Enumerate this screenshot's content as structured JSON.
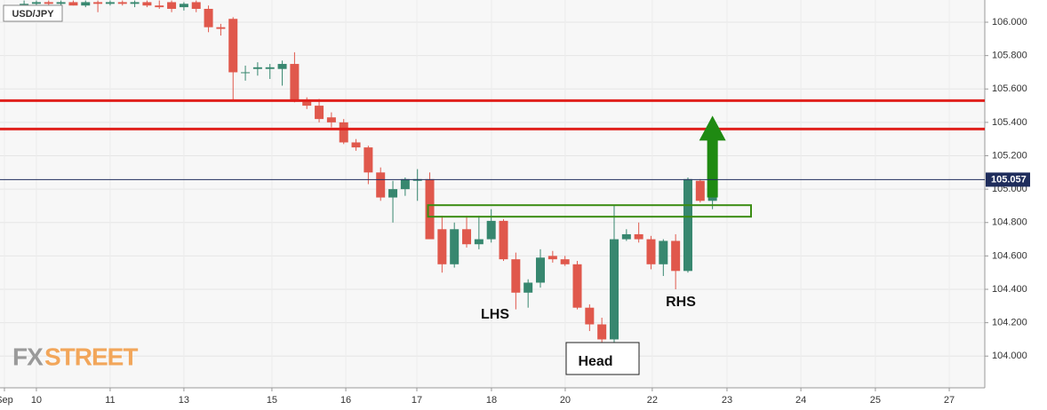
{
  "chart_data": {
    "type": "candlestick",
    "title": "USD/JPY",
    "logo": [
      "FX",
      "STREET"
    ],
    "up_color": "#37876f",
    "down_color": "#e0584c",
    "grid": true,
    "x": [
      -1,
      0,
      1,
      2,
      3,
      4,
      5,
      6,
      7,
      8,
      9,
      10,
      11,
      12,
      13,
      14,
      15,
      16,
      17,
      18,
      19,
      20,
      21,
      22,
      23,
      24,
      25,
      26,
      27,
      28,
      29,
      30,
      31,
      32,
      33,
      34,
      35,
      36,
      37,
      38,
      39,
      40,
      41,
      42,
      43,
      44,
      45,
      46,
      47,
      48,
      49,
      50,
      51,
      52,
      53,
      54,
      55
    ],
    "open": [
      106.1,
      106.11,
      106.12,
      106.11,
      106.12,
      106.1,
      106.12,
      106.11,
      106.12,
      106.11,
      106.12,
      106.1,
      106.12,
      106.09,
      106.12,
      106.08,
      105.97,
      106.02,
      105.7,
      105.72,
      105.72,
      105.72,
      105.75,
      105.53,
      105.5,
      105.43,
      105.4,
      105.28,
      105.25,
      105.1,
      104.95,
      105.0,
      105.05,
      105.06,
      104.76,
      104.55,
      104.76,
      104.67,
      104.7,
      104.81,
      104.58,
      104.38,
      104.44,
      104.6,
      104.58,
      104.55,
      104.29,
      104.19,
      104.1,
      104.7,
      104.73,
      104.7,
      104.55,
      104.69,
      104.51,
      105.05,
      104.93
    ],
    "high": [
      106.13,
      106.13,
      106.13,
      106.13,
      106.13,
      106.13,
      106.13,
      106.13,
      106.13,
      106.13,
      106.13,
      106.13,
      106.13,
      106.12,
      106.13,
      106.1,
      105.99,
      106.03,
      105.74,
      105.76,
      105.75,
      105.77,
      105.82,
      105.55,
      105.54,
      105.46,
      105.42,
      105.3,
      105.26,
      105.13,
      105.05,
      105.07,
      105.12,
      105.1,
      104.84,
      104.8,
      104.84,
      104.84,
      104.88,
      104.82,
      104.62,
      104.46,
      104.64,
      104.63,
      104.6,
      104.57,
      104.31,
      104.23,
      104.9,
      104.76,
      104.8,
      104.72,
      104.7,
      104.73,
      105.07,
      105.06,
      104.96
    ],
    "low": [
      106.08,
      106.09,
      106.1,
      106.09,
      106.1,
      106.09,
      106.06,
      106.1,
      106.1,
      106.09,
      106.09,
      106.08,
      106.06,
      106.07,
      106.06,
      105.94,
      105.92,
      105.53,
      105.65,
      105.68,
      105.66,
      105.62,
      105.52,
      105.48,
      105.4,
      105.37,
      105.27,
      105.23,
      105.03,
      104.93,
      104.8,
      104.96,
      104.93,
      104.72,
      104.5,
      104.53,
      104.65,
      104.64,
      104.68,
      104.57,
      104.28,
      104.29,
      104.41,
      104.56,
      104.54,
      104.28,
      104.15,
      104.02,
      104.06,
      104.69,
      104.68,
      104.52,
      104.48,
      104.4,
      104.5,
      104.92,
      104.88
    ],
    "close": [
      106.11,
      106.12,
      106.11,
      106.12,
      106.1,
      106.12,
      106.11,
      106.12,
      106.11,
      106.12,
      106.1,
      106.09,
      106.08,
      106.11,
      106.08,
      105.97,
      105.96,
      105.7,
      105.7,
      105.73,
      105.73,
      105.75,
      105.53,
      105.5,
      105.42,
      105.4,
      105.28,
      105.25,
      105.1,
      104.95,
      105.0,
      105.06,
      105.06,
      104.7,
      104.55,
      104.76,
      104.67,
      104.7,
      104.81,
      104.58,
      104.38,
      104.44,
      104.59,
      104.58,
      104.55,
      104.29,
      104.19,
      104.1,
      104.7,
      104.73,
      104.7,
      104.55,
      104.69,
      104.51,
      105.06,
      104.93,
      104.96
    ],
    "xlim": [
      -2.96,
      77.15
    ],
    "xticks": [
      {
        "value": -2.6,
        "label": "Sep"
      },
      {
        "value": 0,
        "label": "10"
      },
      {
        "value": 6,
        "label": "11"
      },
      {
        "value": 12,
        "label": "13"
      },
      {
        "value": 19.16,
        "label": "15"
      },
      {
        "value": 25.17,
        "label": "16"
      },
      {
        "value": 30.95,
        "label": "17"
      },
      {
        "value": 37.02,
        "label": "18"
      },
      {
        "value": 43.02,
        "label": "20"
      },
      {
        "value": 50.1,
        "label": "22"
      },
      {
        "value": 56.18,
        "label": "23"
      },
      {
        "value": 62.19,
        "label": "24"
      },
      {
        "value": 68.25,
        "label": "25"
      },
      {
        "value": 74.26,
        "label": "27"
      }
    ],
    "ylim": [
      103.81,
      106.133
    ],
    "yticks": [
      {
        "value": 104,
        "label": "104.000"
      },
      {
        "value": 104.2,
        "label": "104.200"
      },
      {
        "value": 104.4,
        "label": "104.400"
      },
      {
        "value": 104.6,
        "label": "104.600"
      },
      {
        "value": 104.8,
        "label": "104.800"
      },
      {
        "value": 105,
        "label": "105.000"
      },
      {
        "value": 105.2,
        "label": "105.200"
      },
      {
        "value": 105.4,
        "label": "105.400"
      },
      {
        "value": 105.6,
        "label": "105.600"
      },
      {
        "value": 105.8,
        "label": "105.800"
      },
      {
        "value": 106,
        "label": "106.000"
      }
    ],
    "last_price": 105.057,
    "hlines": [
      105.53,
      105.36
    ],
    "hline_color": "#e0201c",
    "zone": {
      "low": 104.835,
      "high": 104.904,
      "color": "#3a8c12"
    },
    "arrow": {
      "from": 104.95,
      "to": 105.44,
      "color": "#1f8a12"
    },
    "annotations": {
      "lhs": "LHS",
      "head": "Head",
      "rhs": "RHS"
    }
  }
}
